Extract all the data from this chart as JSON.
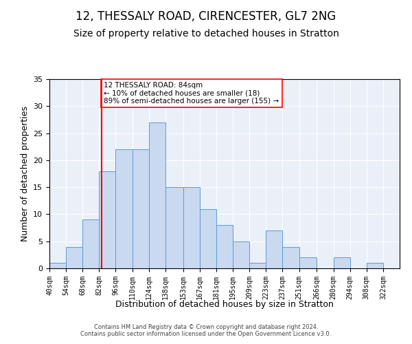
{
  "title_line1": "12, THESSALY ROAD, CIRENCESTER, GL7 2NG",
  "title_line2": "Size of property relative to detached houses in Stratton",
  "xlabel": "Distribution of detached houses by size in Stratton",
  "ylabel": "Number of detached properties",
  "footnote1": "Contains HM Land Registry data © Crown copyright and database right 2024.",
  "footnote2": "Contains public sector information licensed under the Open Government Licence v3.0.",
  "bin_labels": [
    "40sqm",
    "54sqm",
    "68sqm",
    "82sqm",
    "96sqm",
    "110sqm",
    "124sqm",
    "138sqm",
    "153sqm",
    "167sqm",
    "181sqm",
    "195sqm",
    "209sqm",
    "223sqm",
    "237sqm",
    "251sqm",
    "266sqm",
    "280sqm",
    "294sqm",
    "308sqm",
    "322sqm"
  ],
  "bar_heights": [
    1,
    4,
    9,
    18,
    22,
    22,
    27,
    15,
    15,
    11,
    8,
    5,
    1,
    7,
    4,
    2,
    0,
    2,
    0,
    1,
    0
  ],
  "bin_edges": [
    40,
    54,
    68,
    82,
    96,
    110,
    124,
    138,
    153,
    167,
    181,
    195,
    209,
    223,
    237,
    251,
    266,
    280,
    294,
    308,
    322,
    336
  ],
  "bar_color": "#c9d9f0",
  "bar_edge_color": "#5b9bd5",
  "property_line_x": 84,
  "property_line_color": "red",
  "annotation_text": "12 THESSALY ROAD: 84sqm\n← 10% of detached houses are smaller (18)\n89% of semi-detached houses are larger (155) →",
  "annotation_box_color": "white",
  "annotation_box_edge": "red",
  "ylim": [
    0,
    35
  ],
  "yticks": [
    0,
    5,
    10,
    15,
    20,
    25,
    30,
    35
  ],
  "background_color": "#eaf0f8",
  "grid_color": "white",
  "title_fontsize": 12,
  "subtitle_fontsize": 10,
  "xlabel_fontsize": 9,
  "ylabel_fontsize": 9,
  "annot_fontsize": 7.5,
  "footnote_fontsize": 6
}
